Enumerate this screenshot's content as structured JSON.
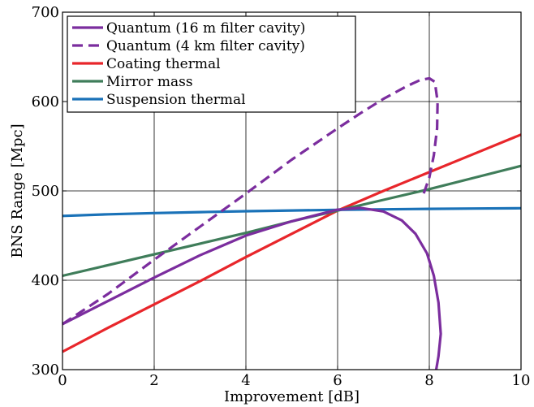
{
  "chart_data": {
    "type": "line",
    "xlabel": "Improvement [dB]",
    "ylabel": "BNS Range [Mpc]",
    "xlim": [
      0,
      10
    ],
    "ylim": [
      300,
      700
    ],
    "xticks": [
      "0",
      "2",
      "4",
      "6",
      "8",
      "10"
    ],
    "yticks": [
      "300",
      "400",
      "500",
      "600",
      "700"
    ],
    "grid": true,
    "legend_position": "top-left",
    "series": [
      {
        "name": "Quantum (16 m filter cavity)",
        "color": "#7b2d9e",
        "dash": "solid",
        "points": [
          [
            0,
            351
          ],
          [
            1,
            377
          ],
          [
            2,
            403
          ],
          [
            3,
            428
          ],
          [
            4,
            450
          ],
          [
            5,
            466
          ],
          [
            6,
            479
          ],
          [
            6.5,
            481
          ],
          [
            7,
            477
          ],
          [
            7.4,
            467
          ],
          [
            7.7,
            452
          ],
          [
            7.95,
            430
          ],
          [
            8.1,
            405
          ],
          [
            8.2,
            375
          ],
          [
            8.25,
            340
          ],
          [
            8.2,
            315
          ],
          [
            8.15,
            300
          ]
        ]
      },
      {
        "name": "Quantum (4 km filter cavity)",
        "color": "#7b2d9e",
        "dash": "dashed",
        "points": [
          [
            0,
            351
          ],
          [
            1,
            385
          ],
          [
            2,
            423
          ],
          [
            3,
            460
          ],
          [
            4,
            497
          ],
          [
            5,
            535
          ],
          [
            6,
            570
          ],
          [
            6.5,
            587
          ],
          [
            7,
            603
          ],
          [
            7.5,
            617
          ],
          [
            7.8,
            624
          ],
          [
            8.0,
            626
          ],
          [
            8.12,
            622
          ],
          [
            8.18,
            600
          ],
          [
            8.17,
            570
          ],
          [
            8.1,
            540
          ],
          [
            8.0,
            515
          ],
          [
            7.85,
            493
          ]
        ]
      },
      {
        "name": "Coating thermal",
        "color": "#e8262b",
        "dash": "solid",
        "points": [
          [
            0,
            320
          ],
          [
            1,
            347
          ],
          [
            2,
            373
          ],
          [
            3,
            399
          ],
          [
            4,
            426
          ],
          [
            5,
            452
          ],
          [
            6,
            478
          ],
          [
            7,
            500
          ],
          [
            8,
            521
          ],
          [
            9,
            542
          ],
          [
            10,
            563
          ]
        ]
      },
      {
        "name": "Mirror mass",
        "color": "#3f7d5a",
        "dash": "solid",
        "points": [
          [
            0,
            405
          ],
          [
            1,
            417
          ],
          [
            2,
            429
          ],
          [
            3,
            441
          ],
          [
            4,
            453
          ],
          [
            5,
            466
          ],
          [
            6,
            478
          ],
          [
            7,
            490
          ],
          [
            8,
            502
          ],
          [
            9,
            515
          ],
          [
            10,
            528
          ]
        ]
      },
      {
        "name": "Suspension thermal",
        "color": "#1a72b8",
        "dash": "solid",
        "points": [
          [
            0,
            472
          ],
          [
            1,
            473.8
          ],
          [
            2,
            475.2
          ],
          [
            3,
            476.3
          ],
          [
            4,
            477.3
          ],
          [
            5,
            478.1
          ],
          [
            6,
            478.8
          ],
          [
            7,
            479.4
          ],
          [
            8,
            479.9
          ],
          [
            9,
            480.3
          ],
          [
            10,
            480.6
          ]
        ]
      }
    ]
  }
}
